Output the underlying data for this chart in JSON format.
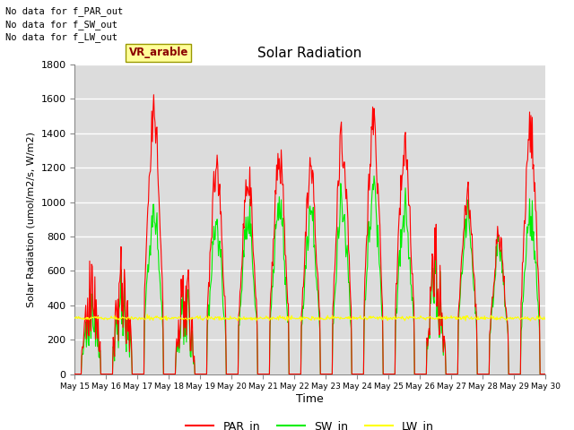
{
  "title": "Solar Radiation",
  "xlabel": "Time",
  "ylabel": "Solar Radiation (umol/m2/s, W/m2)",
  "ylim": [
    0,
    1800
  ],
  "plot_bg_color": "#dcdcdc",
  "grid_color": "white",
  "legend_labels": [
    "PAR_in",
    "SW_in",
    "LW_in"
  ],
  "legend_colors": [
    "red",
    "#00ee00",
    "yellow"
  ],
  "annotations": [
    "No data for f_PAR_out",
    "No data for f_SW_out",
    "No data for f_LW_out"
  ],
  "watermark": "VR_arable",
  "par_color": "red",
  "sw_color": "#00ee00",
  "lw_color": "yellow",
  "x_tick_labels": [
    "May 15",
    "May 16",
    "May 17",
    "May 18",
    "May 19",
    "May 20",
    "May 21",
    "May 22",
    "May 23",
    "May 24",
    "May 25",
    "May 26",
    "May 27",
    "May 28",
    "May 29",
    "May 30"
  ],
  "start_day": 15,
  "end_day": 30,
  "lw_base": 325
}
